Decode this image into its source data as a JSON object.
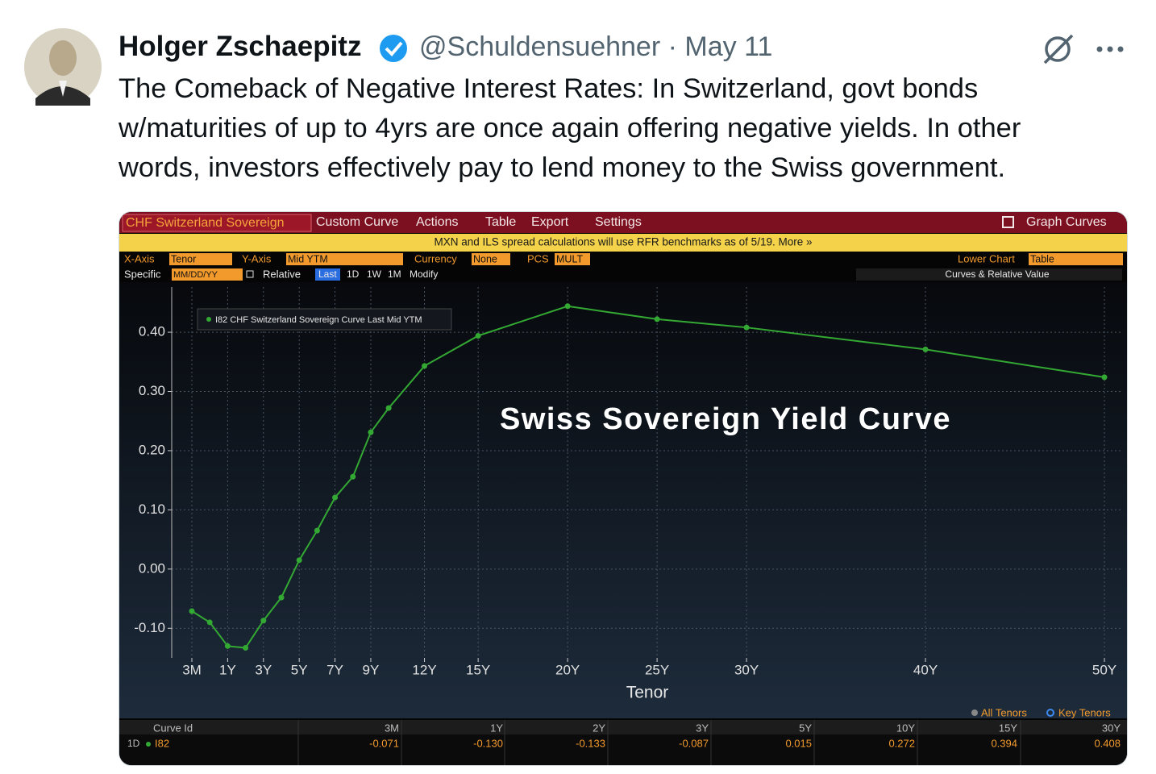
{
  "tweet": {
    "author": "Holger Zschaepitz",
    "handle": "@Schuldensuehner",
    "separator": "·",
    "date": "May 11",
    "text_lines": [
      "The Comeback of Negative Interest Rates: In Switzerland, govt bonds",
      "w/maturities of up to 4yrs are once again offering negative yields. In other",
      "words, investors effectively pay to lend money to the Swiss government."
    ]
  },
  "terminal": {
    "toolbar": {
      "items": [
        "CHF Switzerland Sovereign",
        "Custom Curve",
        "Actions",
        "Table",
        "Export",
        "Settings"
      ],
      "right": "Graph Curves"
    },
    "notice": "MXN and ILS spread calculations will use RFR benchmarks as of 5/19. More »",
    "controls": {
      "x_axis_label": "X-Axis",
      "x_axis": "Tenor",
      "y_axis_label": "Y-Axis",
      "y_axis": "Mid YTM",
      "currency_label": "Currency",
      "currency": "None",
      "pcs_label": "PCS",
      "pcs": "MULT",
      "lower_chart_label": "Lower Chart",
      "lower_chart": "Table",
      "specific_label": "Specific",
      "specific": "MM/DD/YY",
      "relative_label": "Relative",
      "relative_options": [
        "Last",
        "1D",
        "1W",
        "1M"
      ],
      "modify": "Modify",
      "panel": "Curves & Relative Value"
    },
    "chart": {
      "type": "line",
      "annotation": "Swiss Sovereign Yield Curve",
      "x_label": "Tenor",
      "x": [
        0.25,
        0.5,
        1,
        2,
        3,
        4,
        5,
        6,
        7,
        8,
        9,
        10,
        12,
        15,
        20,
        25,
        30,
        40,
        50
      ],
      "xlim": [
        0.25,
        50
      ],
      "xticks": [
        {
          "value": 0.25,
          "label": "3M"
        },
        {
          "value": 1,
          "label": "1Y"
        },
        {
          "value": 3,
          "label": "3Y"
        },
        {
          "value": 5,
          "label": "5Y"
        },
        {
          "value": 7,
          "label": "7Y"
        },
        {
          "value": 9,
          "label": "9Y"
        },
        {
          "value": 12,
          "label": "12Y"
        },
        {
          "value": 15,
          "label": "15Y"
        },
        {
          "value": 20,
          "label": "20Y"
        },
        {
          "value": 25,
          "label": "25Y"
        },
        {
          "value": 30,
          "label": "30Y"
        },
        {
          "value": 40,
          "label": "40Y"
        },
        {
          "value": 50,
          "label": "50Y"
        }
      ],
      "ylim": [
        -0.15,
        0.46
      ],
      "yticks": [
        {
          "value": -0.1,
          "label": "-0.10"
        },
        {
          "value": 0,
          "label": "0.00"
        },
        {
          "value": 0.1,
          "label": "0.10"
        },
        {
          "value": 0.2,
          "label": "0.20"
        },
        {
          "value": 0.3,
          "label": "0.30"
        },
        {
          "value": 0.4,
          "label": "0.40"
        }
      ],
      "grid": true,
      "series": [
        {
          "name": "I82 CHF Switzerland Sovereign Curve Last Mid YTM",
          "color": "#33a833",
          "values": [
            -0.071,
            -0.09,
            -0.13,
            -0.133,
            -0.087,
            -0.048,
            0.015,
            0.065,
            0.121,
            0.156,
            0.231,
            0.272,
            0.343,
            0.394,
            0.444,
            0.422,
            0.408,
            0.371,
            0.324
          ]
        }
      ],
      "key_legend": [
        "All Tenors",
        "Key Tenors"
      ]
    },
    "table": {
      "header": [
        "Curve Id",
        "3M",
        "1Y",
        "2Y",
        "3Y",
        "5Y",
        "10Y",
        "15Y",
        "30Y"
      ],
      "row": {
        "label": "1D",
        "curve": "I82",
        "values": [
          "-0.071",
          "-0.130",
          "-0.133",
          "-0.087",
          "0.015",
          "0.272",
          "0.394",
          "0.408"
        ]
      }
    }
  }
}
